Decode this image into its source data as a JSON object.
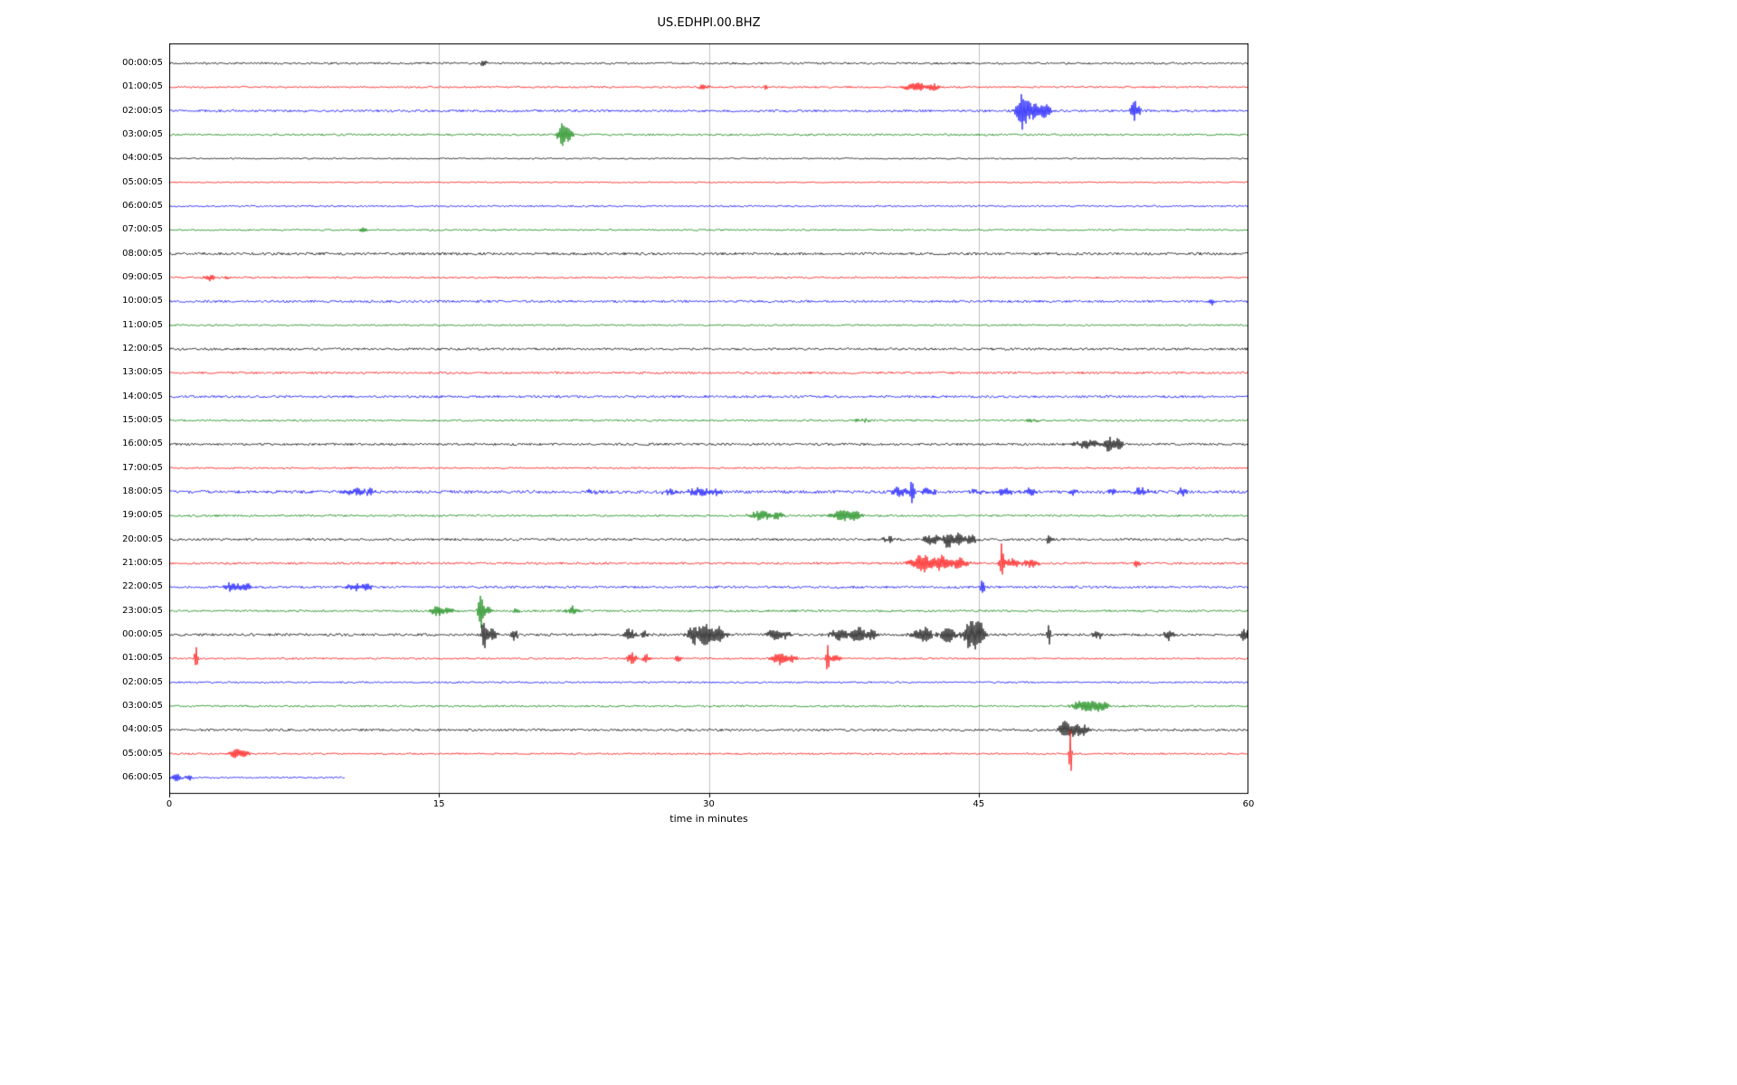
{
  "chart_data": {
    "type": "line",
    "title": "US.EDHPI.00.BHZ",
    "xlabel": "time in minutes",
    "ylabel": "",
    "xlim": [
      0,
      60
    ],
    "x_ticks": [
      0,
      15,
      30,
      45,
      60
    ],
    "grid": true,
    "grid_color": "#b0b0b0",
    "frame_color": "#000000",
    "trace_colors_cycle": [
      "#000000",
      "#ff0000",
      "#0000ff",
      "#008000"
    ],
    "rows": [
      {
        "label": "00:00:05",
        "noise": 0.35,
        "events": [
          {
            "t": 17.5,
            "w": 0.2,
            "a": 0.35
          }
        ]
      },
      {
        "label": "01:00:05",
        "noise": 0.3,
        "events": [
          {
            "t": 29.7,
            "w": 0.25,
            "a": 0.3
          },
          {
            "t": 33.2,
            "w": 0.15,
            "a": 0.25
          },
          {
            "t": 41.5,
            "w": 0.6,
            "a": 0.45
          },
          {
            "t": 42.5,
            "w": 0.3,
            "a": 0.35
          }
        ]
      },
      {
        "label": "02:00:05",
        "noise": 0.4,
        "events": [
          {
            "t": 47.4,
            "w": 0.3,
            "a": 1.4
          },
          {
            "t": 47.9,
            "w": 0.5,
            "a": 0.9
          },
          {
            "t": 48.7,
            "w": 0.4,
            "a": 0.7
          },
          {
            "t": 53.7,
            "w": 0.25,
            "a": 0.9
          }
        ]
      },
      {
        "label": "03:00:05",
        "noise": 0.35,
        "events": [
          {
            "t": 21.9,
            "w": 0.3,
            "a": 1.1
          },
          {
            "t": 22.3,
            "w": 0.2,
            "a": 0.5
          }
        ]
      },
      {
        "label": "04:00:05",
        "noise": 0.25,
        "events": []
      },
      {
        "label": "05:00:05",
        "noise": 0.22,
        "events": []
      },
      {
        "label": "06:00:05",
        "noise": 0.3,
        "events": []
      },
      {
        "label": "07:00:05",
        "noise": 0.28,
        "events": [
          {
            "t": 10.8,
            "w": 0.25,
            "a": 0.25
          }
        ]
      },
      {
        "label": "08:00:05",
        "noise": 0.45,
        "events": []
      },
      {
        "label": "09:00:05",
        "noise": 0.3,
        "events": [
          {
            "t": 2.3,
            "w": 0.3,
            "a": 0.3
          },
          {
            "t": 3.2,
            "w": 0.2,
            "a": 0.2
          }
        ]
      },
      {
        "label": "10:00:05",
        "noise": 0.4,
        "events": [
          {
            "t": 58.0,
            "w": 0.2,
            "a": 0.3
          }
        ]
      },
      {
        "label": "11:00:05",
        "noise": 0.28,
        "events": []
      },
      {
        "label": "12:00:05",
        "noise": 0.4,
        "events": []
      },
      {
        "label": "13:00:05",
        "noise": 0.38,
        "events": []
      },
      {
        "label": "14:00:05",
        "noise": 0.42,
        "events": []
      },
      {
        "label": "15:00:05",
        "noise": 0.32,
        "events": [
          {
            "t": 38.5,
            "w": 0.5,
            "a": 0.15
          },
          {
            "t": 48.0,
            "w": 0.5,
            "a": 0.15
          }
        ]
      },
      {
        "label": "16:00:05",
        "noise": 0.4,
        "events": [
          {
            "t": 51.0,
            "w": 0.6,
            "a": 0.45
          },
          {
            "t": 52.3,
            "w": 0.4,
            "a": 0.7
          },
          {
            "t": 52.8,
            "w": 0.2,
            "a": 0.5
          }
        ]
      },
      {
        "label": "17:00:05",
        "noise": 0.28,
        "events": []
      },
      {
        "label": "18:00:05",
        "noise": 0.5,
        "events": [
          {
            "t": 10.3,
            "w": 0.5,
            "a": 0.35
          },
          {
            "t": 11.2,
            "w": 0.3,
            "a": 0.3
          },
          {
            "t": 23.5,
            "w": 0.3,
            "a": 0.25
          },
          {
            "t": 27.8,
            "w": 0.4,
            "a": 0.3
          },
          {
            "t": 29.4,
            "w": 0.6,
            "a": 0.4
          },
          {
            "t": 30.4,
            "w": 0.3,
            "a": 0.35
          },
          {
            "t": 40.6,
            "w": 0.5,
            "a": 0.4
          },
          {
            "t": 41.3,
            "w": 0.1,
            "a": 1.7
          },
          {
            "t": 42.2,
            "w": 0.4,
            "a": 0.35
          },
          {
            "t": 44.8,
            "w": 0.4,
            "a": 0.3
          },
          {
            "t": 46.4,
            "w": 0.5,
            "a": 0.4
          },
          {
            "t": 47.9,
            "w": 0.4,
            "a": 0.35
          },
          {
            "t": 50.2,
            "w": 0.3,
            "a": 0.3
          },
          {
            "t": 52.4,
            "w": 0.4,
            "a": 0.3
          },
          {
            "t": 54.1,
            "w": 0.5,
            "a": 0.4
          },
          {
            "t": 56.3,
            "w": 0.3,
            "a": 0.35
          }
        ]
      },
      {
        "label": "19:00:05",
        "noise": 0.35,
        "events": [
          {
            "t": 32.9,
            "w": 0.6,
            "a": 0.5
          },
          {
            "t": 33.9,
            "w": 0.3,
            "a": 0.35
          },
          {
            "t": 37.4,
            "w": 0.6,
            "a": 0.55
          },
          {
            "t": 38.2,
            "w": 0.3,
            "a": 0.4
          }
        ]
      },
      {
        "label": "20:00:05",
        "noise": 0.4,
        "events": [
          {
            "t": 40.0,
            "w": 0.5,
            "a": 0.25
          },
          {
            "t": 42.4,
            "w": 0.5,
            "a": 0.5
          },
          {
            "t": 43.3,
            "w": 0.25,
            "a": 0.9
          },
          {
            "t": 43.9,
            "w": 0.25,
            "a": 0.7
          },
          {
            "t": 44.6,
            "w": 0.3,
            "a": 0.5
          },
          {
            "t": 48.9,
            "w": 0.12,
            "a": 0.5
          }
        ]
      },
      {
        "label": "21:00:05",
        "noise": 0.38,
        "events": [
          {
            "t": 41.9,
            "w": 0.7,
            "a": 0.8
          },
          {
            "t": 42.9,
            "w": 0.4,
            "a": 0.7
          },
          {
            "t": 43.9,
            "w": 0.5,
            "a": 0.6
          },
          {
            "t": 46.3,
            "w": 0.12,
            "a": 1.9
          },
          {
            "t": 46.9,
            "w": 0.4,
            "a": 0.5
          },
          {
            "t": 47.9,
            "w": 0.4,
            "a": 0.4
          },
          {
            "t": 53.8,
            "w": 0.2,
            "a": 0.35
          }
        ]
      },
      {
        "label": "22:00:05",
        "noise": 0.4,
        "events": [
          {
            "t": 3.5,
            "w": 0.5,
            "a": 0.4
          },
          {
            "t": 4.3,
            "w": 0.3,
            "a": 0.3
          },
          {
            "t": 10.3,
            "w": 0.4,
            "a": 0.4
          },
          {
            "t": 11.0,
            "w": 0.3,
            "a": 0.3
          },
          {
            "t": 45.2,
            "w": 0.1,
            "a": 1.1
          }
        ]
      },
      {
        "label": "23:00:05",
        "noise": 0.35,
        "events": [
          {
            "t": 14.9,
            "w": 0.4,
            "a": 0.45
          },
          {
            "t": 15.6,
            "w": 0.3,
            "a": 0.3
          },
          {
            "t": 17.3,
            "w": 0.12,
            "a": 1.9
          },
          {
            "t": 17.6,
            "w": 0.3,
            "a": 0.5
          },
          {
            "t": 19.3,
            "w": 0.2,
            "a": 0.35
          },
          {
            "t": 22.4,
            "w": 0.3,
            "a": 0.45
          }
        ]
      },
      {
        "label": "00:00:05",
        "noise": 0.45,
        "events": [
          {
            "t": 17.5,
            "w": 0.12,
            "a": 1.6
          },
          {
            "t": 17.9,
            "w": 0.3,
            "a": 0.6
          },
          {
            "t": 19.2,
            "w": 0.2,
            "a": 0.5
          },
          {
            "t": 25.6,
            "w": 0.3,
            "a": 0.6
          },
          {
            "t": 26.4,
            "w": 0.2,
            "a": 0.45
          },
          {
            "t": 29.2,
            "w": 0.4,
            "a": 0.9
          },
          {
            "t": 29.8,
            "w": 0.25,
            "a": 1.3
          },
          {
            "t": 30.5,
            "w": 0.4,
            "a": 0.8
          },
          {
            "t": 33.6,
            "w": 0.4,
            "a": 0.5
          },
          {
            "t": 34.3,
            "w": 0.3,
            "a": 0.4
          },
          {
            "t": 37.3,
            "w": 0.5,
            "a": 0.6
          },
          {
            "t": 38.3,
            "w": 0.4,
            "a": 0.7
          },
          {
            "t": 39.1,
            "w": 0.3,
            "a": 0.5
          },
          {
            "t": 41.9,
            "w": 0.5,
            "a": 0.8
          },
          {
            "t": 43.3,
            "w": 0.4,
            "a": 0.9
          },
          {
            "t": 44.6,
            "w": 0.4,
            "a": 1.5
          },
          {
            "t": 45.1,
            "w": 0.3,
            "a": 1.0
          },
          {
            "t": 48.9,
            "w": 0.1,
            "a": 1.0
          },
          {
            "t": 51.6,
            "w": 0.3,
            "a": 0.4
          },
          {
            "t": 55.6,
            "w": 0.3,
            "a": 0.5
          },
          {
            "t": 59.8,
            "w": 0.2,
            "a": 0.7
          }
        ]
      },
      {
        "label": "01:00:05",
        "noise": 0.3,
        "events": [
          {
            "t": 1.5,
            "w": 0.1,
            "a": 1.2
          },
          {
            "t": 25.7,
            "w": 0.3,
            "a": 0.55
          },
          {
            "t": 26.5,
            "w": 0.2,
            "a": 0.4
          },
          {
            "t": 28.3,
            "w": 0.2,
            "a": 0.35
          },
          {
            "t": 33.9,
            "w": 0.4,
            "a": 0.55
          },
          {
            "t": 34.6,
            "w": 0.3,
            "a": 0.4
          },
          {
            "t": 36.6,
            "w": 0.1,
            "a": 1.6
          },
          {
            "t": 37.1,
            "w": 0.3,
            "a": 0.45
          }
        ]
      },
      {
        "label": "02:00:05",
        "noise": 0.3,
        "events": []
      },
      {
        "label": "03:00:05",
        "noise": 0.33,
        "events": [
          {
            "t": 50.6,
            "w": 0.5,
            "a": 0.5
          },
          {
            "t": 51.4,
            "w": 0.4,
            "a": 0.6
          },
          {
            "t": 52.0,
            "w": 0.25,
            "a": 0.45
          }
        ]
      },
      {
        "label": "04:00:05",
        "noise": 0.4,
        "events": [
          {
            "t": 49.8,
            "w": 0.3,
            "a": 0.9
          },
          {
            "t": 50.4,
            "w": 0.3,
            "a": 0.7
          },
          {
            "t": 50.9,
            "w": 0.2,
            "a": 0.5
          }
        ]
      },
      {
        "label": "05:00:05",
        "noise": 0.3,
        "events": [
          {
            "t": 3.7,
            "w": 0.3,
            "a": 0.6
          },
          {
            "t": 4.2,
            "w": 0.2,
            "a": 0.4
          },
          {
            "t": 50.1,
            "w": 0.08,
            "a": 2.3
          }
        ]
      },
      {
        "label": "06:00:05",
        "noise": 0.28,
        "span": [
          0,
          9.8
        ],
        "events": [
          {
            "t": 0.4,
            "w": 0.3,
            "a": 0.4
          },
          {
            "t": 1.1,
            "w": 0.2,
            "a": 0.3
          }
        ]
      }
    ]
  }
}
